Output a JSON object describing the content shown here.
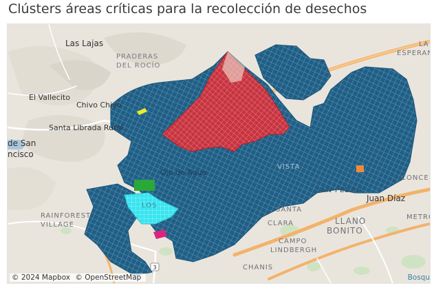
{
  "title": "Clústers áreas críticas para la recolección de desechos",
  "map": {
    "labels": {
      "las_lajas": "Las Lajas",
      "praderas_1": "PRADERAS",
      "praderas_2": "DEL ROCÍO",
      "el_vallecito": "El Vallecito",
      "chivo_chivo": "Chivo Chivo",
      "santa_librada": "Santa Librada Rural",
      "san_francisco_1": "de San",
      "san_francisco_2": "ncisco",
      "ojo_de_agua": "Ojo de Agua",
      "san_pedro": "SAN PEDRO",
      "juan_diaz": "Juan Díaz",
      "rainforest_1": "RAINFOREST",
      "rainforest_2": "VILLAGE",
      "santa_clara_1": "SANTA",
      "santa_clara_2": "CLARA",
      "llano_bonito_1": "LLANO",
      "llano_bonito_2": "BONITO",
      "campo_1": "CAMPO",
      "campo_2": "LINDBERGH",
      "chanis": "CHANIS",
      "la_esperanza_1": "LA",
      "la_esperanza_2": "ESPERANZA",
      "concepcion": "CONCE",
      "metro": "METRO",
      "los": "LOS",
      "vista": "VISTA",
      "route_shield": "3",
      "corner": "Bosqu"
    },
    "attribution": {
      "mapbox": "© 2024 Mapbox",
      "osm": "© OpenStreetMap"
    },
    "colors": {
      "land": "#e8e4dc",
      "park": "#cfe3c2",
      "road_major": "#f3b26b",
      "road_minor": "#ffffff",
      "cluster_blue": "#1f5f86",
      "cluster_red": "#c8333f",
      "cluster_cyan": "#38e4ef",
      "cluster_green": "#2aa83a",
      "cluster_orange": "#f08b3a",
      "cluster_magenta": "#d9257e",
      "cluster_yellow": "#ecec2a",
      "water": "#a9c7dc"
    }
  }
}
